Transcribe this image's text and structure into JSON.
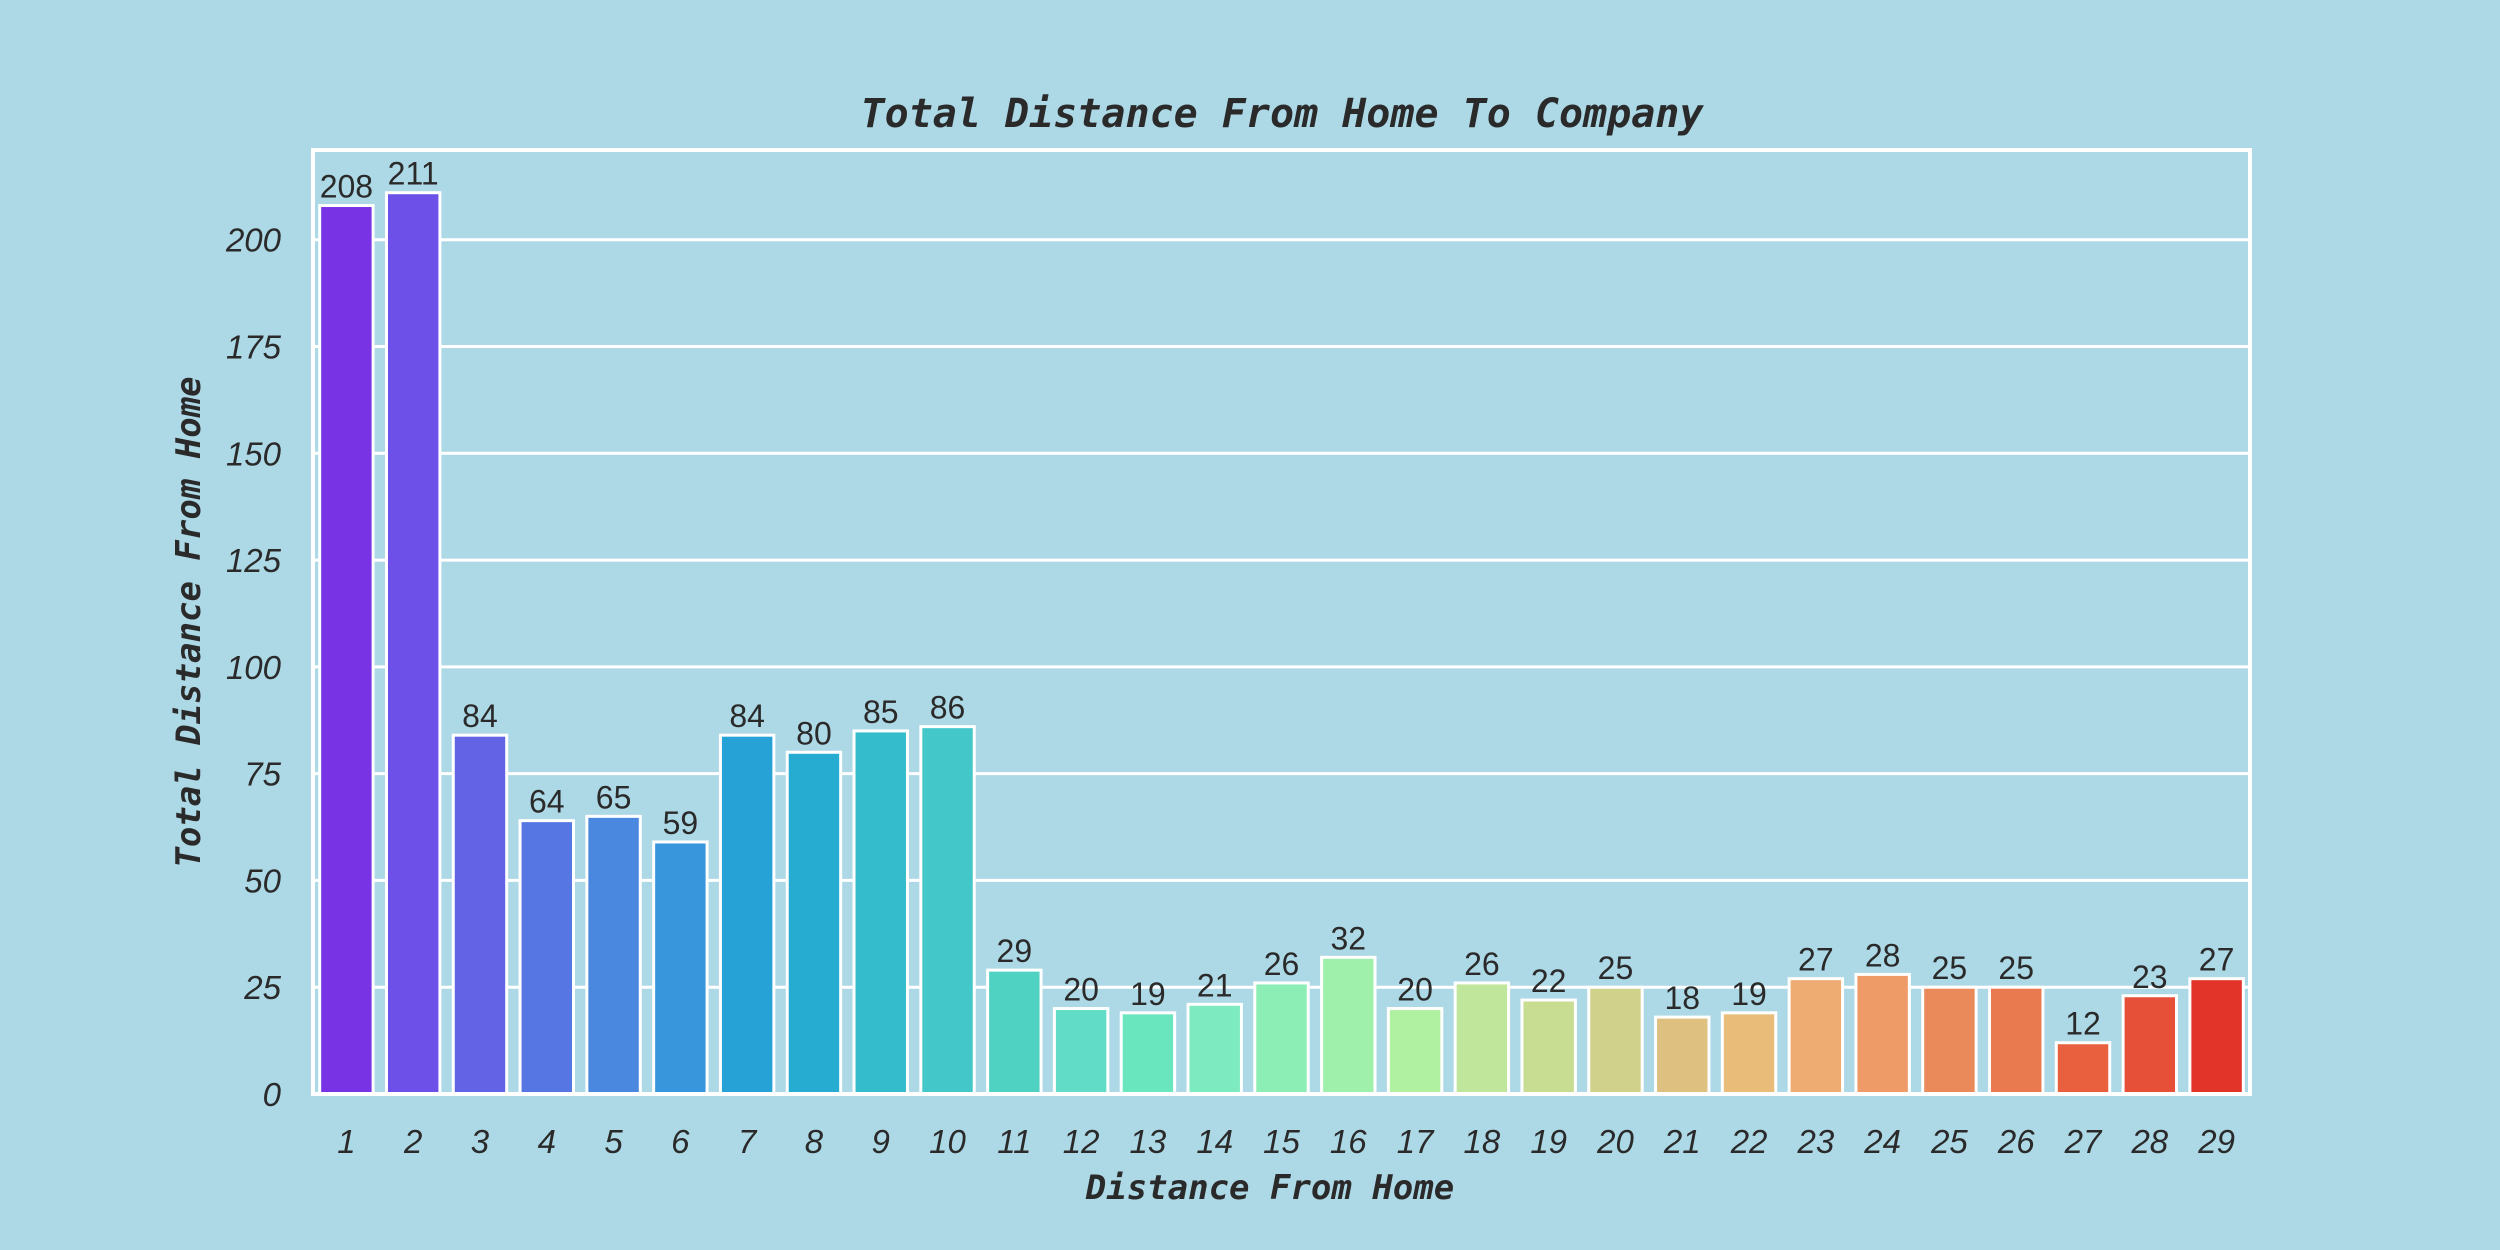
{
  "chart_data": {
    "type": "bar",
    "title": "Total Distance From Home To Company",
    "xlabel": "Distance From Home",
    "ylabel": "Total Distance From Home",
    "categories": [
      "1",
      "2",
      "3",
      "4",
      "5",
      "6",
      "7",
      "8",
      "9",
      "10",
      "11",
      "12",
      "13",
      "14",
      "15",
      "16",
      "17",
      "18",
      "19",
      "20",
      "21",
      "22",
      "23",
      "24",
      "25",
      "26",
      "27",
      "28",
      "29"
    ],
    "values": [
      208,
      211,
      84,
      64,
      65,
      59,
      84,
      80,
      85,
      86,
      29,
      20,
      19,
      21,
      26,
      32,
      20,
      26,
      22,
      25,
      18,
      19,
      27,
      28,
      25,
      25,
      12,
      23,
      27
    ],
    "ylim": [
      0,
      221
    ],
    "yticks": [
      0,
      25,
      50,
      75,
      100,
      125,
      150,
      175,
      200
    ],
    "grid": "horizontal",
    "palette": "rainbow",
    "colors": [
      "#7733e4",
      "#6d50e7",
      "#6364e5",
      "#5677e3",
      "#4a88e0",
      "#3896dc",
      "#26a2d6",
      "#26acd0",
      "#34bbcc",
      "#43c7c9",
      "#50d2c2",
      "#61ddc7",
      "#6ae6bf",
      "#7eeac0",
      "#8ceeb5",
      "#9ef0ab",
      "#aff0a1",
      "#bfe69a",
      "#c8dd91",
      "#d0d18a",
      "#dec080",
      "#e9bc7a",
      "#eeab72",
      "#ee9b67",
      "#ea8a5b",
      "#e9794f",
      "#e9603f",
      "#e65038",
      "#e3342a"
    ],
    "background": "#add8e6",
    "grid_color": "#ffffff"
  }
}
